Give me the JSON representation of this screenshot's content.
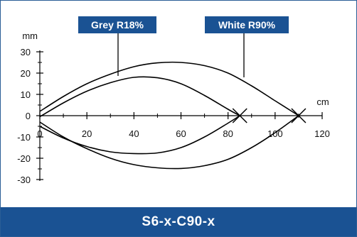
{
  "chart_data": {
    "type": "line",
    "ylabel": "mm",
    "xlabel": "cm",
    "xlim": [
      0,
      120
    ],
    "ylim": [
      -30,
      30
    ],
    "x_ticks": [
      0,
      20,
      40,
      60,
      80,
      100,
      120
    ],
    "y_ticks": [
      30,
      20,
      10,
      0,
      -10,
      -20,
      -30
    ],
    "series": [
      {
        "name": "Grey R18%",
        "upper": {
          "x": [
            0,
            10,
            20,
            30,
            40,
            50,
            60,
            70,
            80,
            85
          ],
          "y": [
            -0.5,
            6,
            11.5,
            15.5,
            18,
            17.8,
            15,
            9.5,
            3,
            0
          ]
        },
        "lower": {
          "x": [
            0,
            10,
            20,
            30,
            40,
            50,
            60,
            70,
            80,
            85
          ],
          "y": [
            -5,
            -10.5,
            -14.5,
            -17,
            -17.8,
            -17.5,
            -15,
            -10,
            -3.5,
            0
          ]
        }
      },
      {
        "name": "White R90%",
        "upper": {
          "x": [
            0,
            10,
            20,
            30,
            40,
            50,
            60,
            70,
            80,
            90,
            100,
            110
          ],
          "y": [
            2,
            9,
            15,
            19.5,
            23,
            24.8,
            25,
            23.5,
            20,
            14,
            7,
            0
          ]
        },
        "lower": {
          "x": [
            0,
            10,
            20,
            30,
            40,
            50,
            60,
            70,
            80,
            90,
            100,
            110
          ],
          "y": [
            -3,
            -10,
            -15.5,
            -20,
            -23,
            -24.5,
            -24.8,
            -23.5,
            -20.5,
            -15,
            -8,
            0
          ]
        }
      }
    ]
  },
  "footer": {
    "title": "S6-x-C90-x"
  },
  "colors": {
    "label_bg": "#1a5293",
    "footer_bg": "#1a5293",
    "line": "#000000"
  }
}
